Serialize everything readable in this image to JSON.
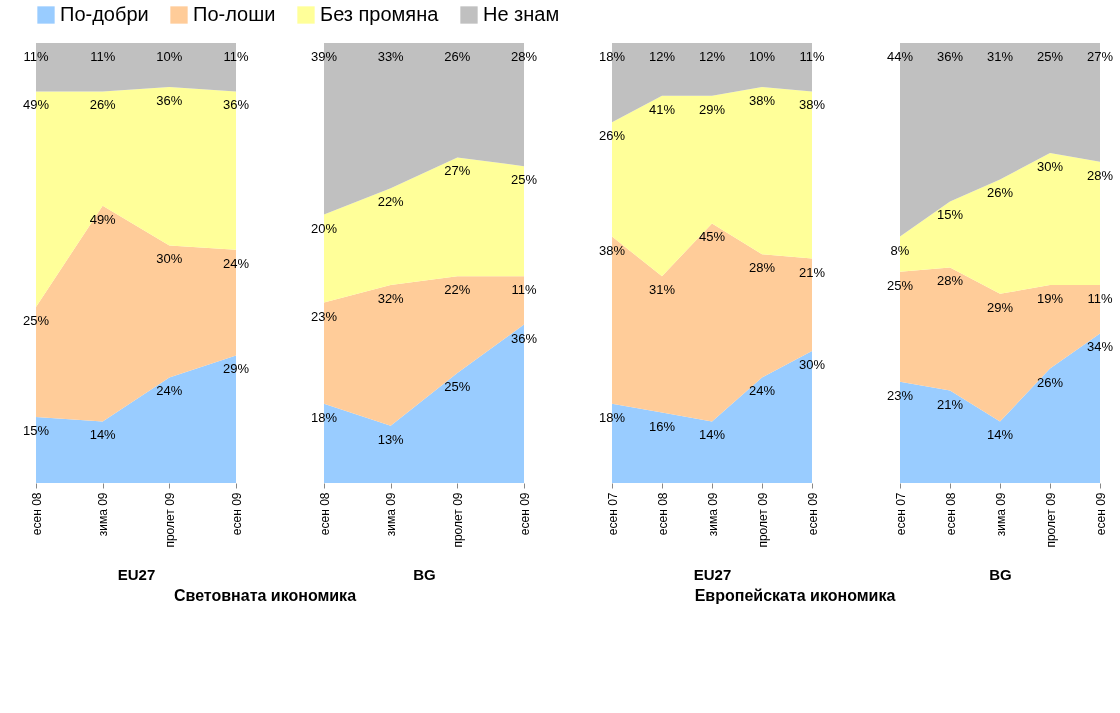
{
  "chart_data": [
    {
      "type": "area",
      "stacked": true,
      "xlabel": "EU27",
      "legend": "top",
      "categories": [
        "есен 08",
        "зима 09",
        "пролет 09",
        "есен 09"
      ],
      "annotations": [
        "Световната икономика"
      ],
      "series": [
        {
          "name": "По-добри",
          "color": "#99ccff",
          "values": [
            15,
            14,
            24,
            29
          ],
          "value_labels": [
            "15%",
            "14%",
            "24%",
            "29%"
          ]
        },
        {
          "name": "По-лоши",
          "color": "#ffcc99",
          "values": [
            25,
            49,
            30,
            24
          ],
          "value_labels": [
            "25%",
            "49%",
            "30%",
            "24%"
          ]
        },
        {
          "name": "Без промяна",
          "color": "#ffff99",
          "values": [
            49,
            26,
            36,
            36
          ],
          "value_labels": [
            "49%",
            "26%",
            "36%",
            "36%"
          ]
        },
        {
          "name": "Не знам",
          "color": "#c0c0c0",
          "values": [
            11,
            11,
            10,
            11
          ],
          "value_labels": [
            "11%",
            "11%",
            "10%",
            "11%"
          ]
        }
      ]
    },
    {
      "type": "area",
      "stacked": true,
      "xlabel": "BG",
      "legend": "top",
      "categories": [
        "есен 08",
        "зима 09",
        "пролет 09",
        "есен 09"
      ],
      "series": [
        {
          "name": "По-добри",
          "color": "#99ccff",
          "values": [
            18,
            13,
            25,
            36
          ],
          "value_labels": [
            "18%",
            "13%",
            "25%",
            "36%"
          ]
        },
        {
          "name": "По-лоши",
          "color": "#ffcc99",
          "values": [
            23,
            32,
            22,
            11
          ],
          "value_labels": [
            "23%",
            "32%",
            "22%",
            "11%"
          ]
        },
        {
          "name": "Без промяна",
          "color": "#ffff99",
          "values": [
            20,
            22,
            27,
            25
          ],
          "value_labels": [
            "20%",
            "22%",
            "27%",
            "25%"
          ]
        },
        {
          "name": "Не знам",
          "color": "#c0c0c0",
          "values": [
            39,
            33,
            26,
            28
          ],
          "value_labels": [
            "39%",
            "33%",
            "26%",
            "28%"
          ]
        }
      ]
    },
    {
      "type": "area",
      "stacked": true,
      "xlabel": "EU27",
      "legend": "top",
      "categories": [
        "есен 07",
        "есен 08",
        "зима 09",
        "пролет 09",
        "есен 09"
      ],
      "annotations": [
        "Европейската икономика"
      ],
      "series": [
        {
          "name": "По-добри",
          "color": "#99ccff",
          "values": [
            18,
            16,
            14,
            24,
            30
          ],
          "value_labels": [
            "18%",
            "16%",
            "14%",
            "24%",
            "30%"
          ]
        },
        {
          "name": "По-лоши",
          "color": "#ffcc99",
          "values": [
            38,
            31,
            45,
            28,
            21
          ],
          "value_labels": [
            "38%",
            "31%",
            "45%",
            "28%",
            "21%"
          ]
        },
        {
          "name": "Без промяна",
          "color": "#ffff99",
          "values": [
            26,
            41,
            29,
            38,
            38
          ],
          "value_labels": [
            "26%",
            "41%",
            "29%",
            "38%",
            "38%"
          ]
        },
        {
          "name": "Не знам",
          "color": "#c0c0c0",
          "values": [
            18,
            12,
            12,
            10,
            11
          ],
          "value_labels": [
            "18%",
            "12%",
            "12%",
            "10%",
            "11%"
          ]
        }
      ]
    },
    {
      "type": "area",
      "stacked": true,
      "xlabel": "BG",
      "legend": "top",
      "categories": [
        "есен 07",
        "есен 08",
        "зима 09",
        "пролет 09",
        "есен 09"
      ],
      "series": [
        {
          "name": "По-добри",
          "color": "#99ccff",
          "values": [
            23,
            21,
            14,
            26,
            34
          ],
          "value_labels": [
            "23%",
            "21%",
            "14%",
            "26%",
            "34%"
          ]
        },
        {
          "name": "По-лоши",
          "color": "#ffcc99",
          "values": [
            25,
            28,
            29,
            19,
            11
          ],
          "value_labels": [
            "25%",
            "28%",
            "29%",
            "19%",
            "11%"
          ]
        },
        {
          "name": "Без промяна",
          "color": "#ffff99",
          "values": [
            8,
            15,
            26,
            30,
            28
          ],
          "value_labels": [
            "8%",
            "15%",
            "26%",
            "30%",
            "28%"
          ]
        },
        {
          "name": "Не знам",
          "color": "#c0c0c0",
          "values": [
            44,
            36,
            31,
            25,
            27
          ],
          "value_labels": [
            "44%",
            "36%",
            "31%",
            "25%",
            "27%"
          ]
        }
      ]
    }
  ]
}
